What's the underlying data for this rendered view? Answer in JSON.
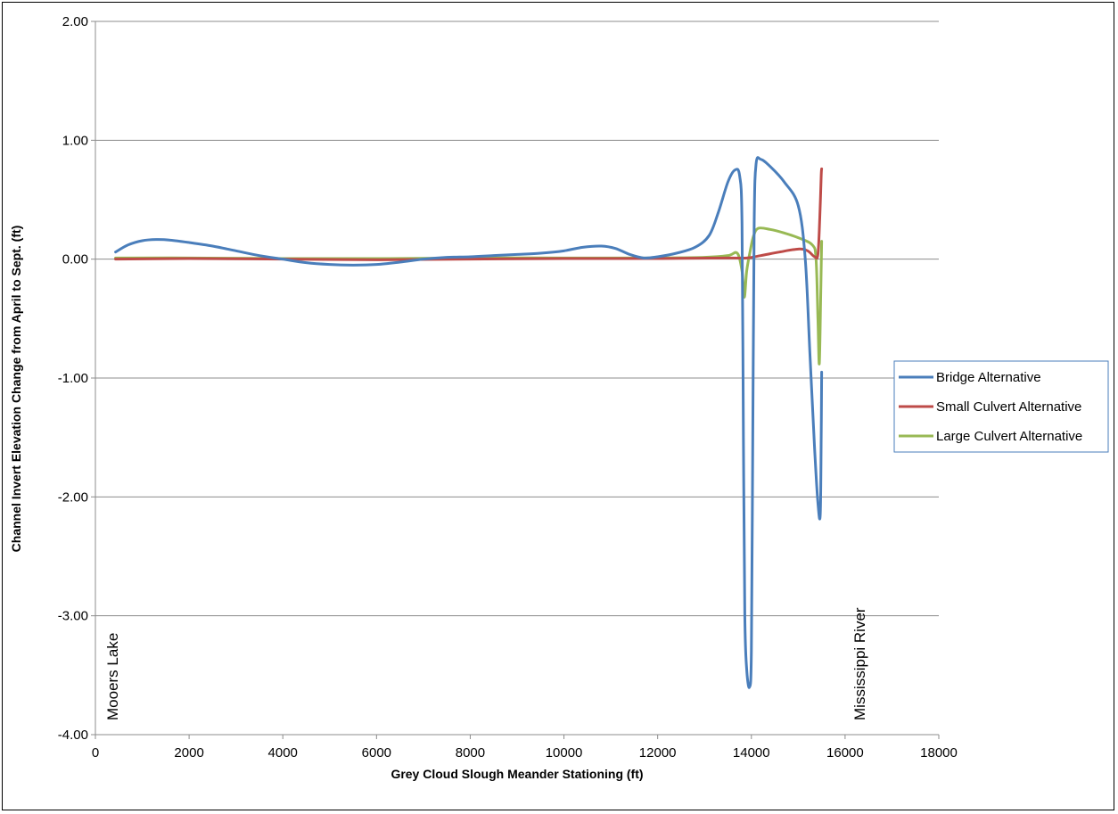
{
  "chart_data": {
    "type": "line",
    "title": "",
    "xlabel": "Grey Cloud Slough Meander Stationing (ft)",
    "ylabel": "Channel Invert Elevation Change from April to Sept. (ft)",
    "xlim": [
      0,
      18000
    ],
    "ylim": [
      -4,
      2
    ],
    "x_ticks": [
      0,
      2000,
      4000,
      6000,
      8000,
      10000,
      12000,
      14000,
      16000,
      18000
    ],
    "y_ticks": [
      2,
      1,
      0,
      -1,
      -2,
      -3,
      -4
    ],
    "x_tick_labels": [
      "0",
      "2000",
      "4000",
      "6000",
      "8000",
      "10000",
      "12000",
      "14000",
      "16000",
      "18000"
    ],
    "y_tick_labels": [
      "2.00",
      "1.00",
      "0.00",
      "-1.00",
      "-2.00",
      "-3.00",
      "-4.00"
    ],
    "grid": "horizontal",
    "legend_position": "right",
    "annotations": [
      {
        "text": "Mooers Lake",
        "x": 400,
        "y": -3.85
      },
      {
        "text": "Mississippi River",
        "x": 16200,
        "y": -3.85
      }
    ],
    "series": [
      {
        "name": "Bridge Alternative",
        "color": "#4a7ebb",
        "points": [
          [
            430,
            0.06
          ],
          [
            700,
            0.12
          ],
          [
            1000,
            0.155
          ],
          [
            1300,
            0.165
          ],
          [
            1600,
            0.16
          ],
          [
            2000,
            0.14
          ],
          [
            2500,
            0.11
          ],
          [
            3000,
            0.07
          ],
          [
            3500,
            0.03
          ],
          [
            4000,
            0.0
          ],
          [
            4500,
            -0.03
          ],
          [
            5000,
            -0.045
          ],
          [
            5500,
            -0.05
          ],
          [
            6000,
            -0.045
          ],
          [
            6500,
            -0.025
          ],
          [
            7000,
            0.0
          ],
          [
            7500,
            0.015
          ],
          [
            8000,
            0.02
          ],
          [
            8500,
            0.03
          ],
          [
            9000,
            0.04
          ],
          [
            9500,
            0.05
          ],
          [
            10000,
            0.07
          ],
          [
            10400,
            0.1
          ],
          [
            10800,
            0.11
          ],
          [
            11100,
            0.09
          ],
          [
            11400,
            0.04
          ],
          [
            11700,
            0.01
          ],
          [
            12000,
            0.02
          ],
          [
            12400,
            0.05
          ],
          [
            12800,
            0.1
          ],
          [
            13100,
            0.2
          ],
          [
            13300,
            0.4
          ],
          [
            13500,
            0.65
          ],
          [
            13650,
            0.75
          ],
          [
            13750,
            0.7
          ],
          [
            13800,
            0.3
          ],
          [
            13830,
            -1.5
          ],
          [
            13860,
            -3.0
          ],
          [
            13900,
            -3.45
          ],
          [
            13960,
            -3.6
          ],
          [
            14000,
            -3.3
          ],
          [
            14030,
            -1.5
          ],
          [
            14060,
            0.3
          ],
          [
            14100,
            0.8
          ],
          [
            14200,
            0.84
          ],
          [
            14400,
            0.78
          ],
          [
            14700,
            0.65
          ],
          [
            15000,
            0.45
          ],
          [
            15150,
            0.0
          ],
          [
            15250,
            -0.8
          ],
          [
            15350,
            -1.6
          ],
          [
            15420,
            -2.05
          ],
          [
            15470,
            -2.15
          ],
          [
            15490,
            -1.5
          ],
          [
            15500,
            -0.95
          ]
        ]
      },
      {
        "name": "Small Culvert Alternative",
        "color": "#be4b48",
        "points": [
          [
            430,
            0.0
          ],
          [
            2000,
            0.005
          ],
          [
            4000,
            0.0
          ],
          [
            6000,
            -0.005
          ],
          [
            8000,
            0.0
          ],
          [
            10000,
            0.005
          ],
          [
            12000,
            0.005
          ],
          [
            13500,
            0.01
          ],
          [
            13900,
            0.01
          ],
          [
            14200,
            0.03
          ],
          [
            14600,
            0.06
          ],
          [
            15000,
            0.085
          ],
          [
            15200,
            0.07
          ],
          [
            15350,
            0.02
          ],
          [
            15420,
            0.04
          ],
          [
            15460,
            0.35
          ],
          [
            15490,
            0.7
          ],
          [
            15500,
            0.76
          ]
        ]
      },
      {
        "name": "Large Culvert Alternative",
        "color": "#98b954",
        "points": [
          [
            430,
            0.01
          ],
          [
            2000,
            0.01
          ],
          [
            4000,
            0.005
          ],
          [
            6000,
            0.005
          ],
          [
            8000,
            0.01
          ],
          [
            10000,
            0.01
          ],
          [
            12000,
            0.01
          ],
          [
            13000,
            0.015
          ],
          [
            13500,
            0.03
          ],
          [
            13700,
            0.05
          ],
          [
            13800,
            -0.1
          ],
          [
            13850,
            -0.32
          ],
          [
            13900,
            -0.1
          ],
          [
            13980,
            0.08
          ],
          [
            14050,
            0.2
          ],
          [
            14150,
            0.26
          ],
          [
            14400,
            0.25
          ],
          [
            14700,
            0.22
          ],
          [
            15000,
            0.18
          ],
          [
            15300,
            0.12
          ],
          [
            15380,
            0.0
          ],
          [
            15420,
            -0.5
          ],
          [
            15450,
            -0.88
          ],
          [
            15480,
            -0.3
          ],
          [
            15500,
            0.15
          ]
        ]
      }
    ]
  }
}
